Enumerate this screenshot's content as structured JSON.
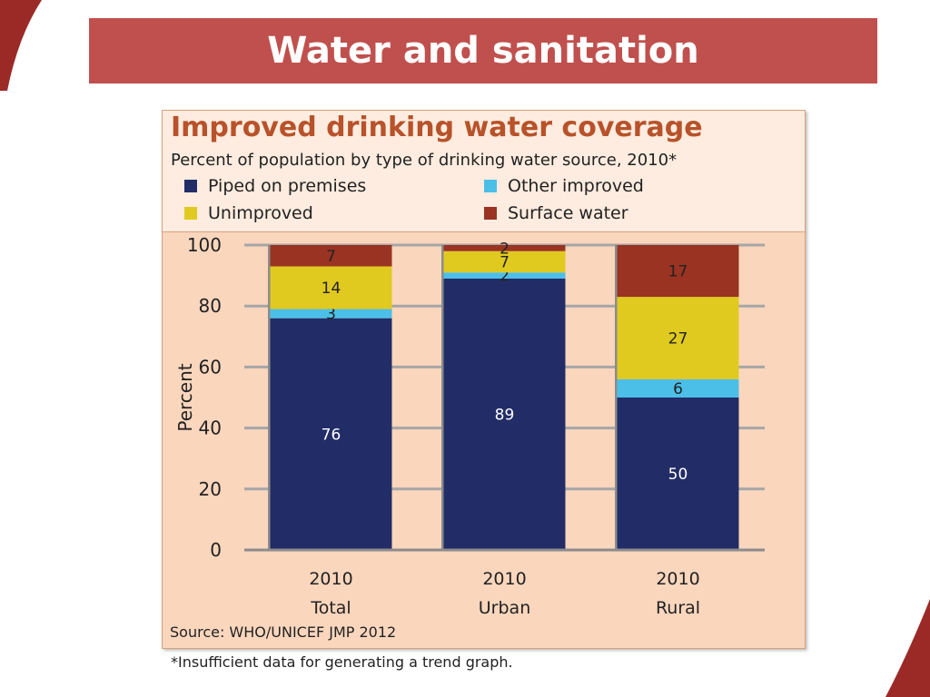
{
  "slide": {
    "title": "Water and sanitation"
  },
  "colors": {
    "banner": "#c0504d",
    "piped": "#222d67",
    "other_improved": "#4bbfe8",
    "unimproved": "#e0ca20",
    "surface_water": "#9a3322"
  },
  "chart": {
    "title": "Improved drinking water coverage",
    "subtitle": "Percent of population by type of drinking water source, 2010*",
    "ylabel": "Percent",
    "source": "Source:  WHO/UNICEF JMP 2012"
  },
  "footnote": "*Insufficient data for generating a trend graph.",
  "chart_data": {
    "type": "bar",
    "stacked": true,
    "categories": [
      {
        "year": "2010",
        "group": "Total"
      },
      {
        "year": "2010",
        "group": "Urban"
      },
      {
        "year": "2010",
        "group": "Rural"
      }
    ],
    "series": [
      {
        "name": "Piped on premises",
        "values": [
          76,
          89,
          50
        ]
      },
      {
        "name": "Other improved",
        "values": [
          3,
          2,
          6
        ]
      },
      {
        "name": "Unimproved",
        "values": [
          14,
          7,
          27
        ]
      },
      {
        "name": "Surface water",
        "values": [
          7,
          2,
          17
        ]
      }
    ],
    "ylim": [
      0,
      100
    ],
    "yticks": [
      0,
      20,
      40,
      60,
      80,
      100
    ],
    "grid": true,
    "legend_position": "top"
  }
}
